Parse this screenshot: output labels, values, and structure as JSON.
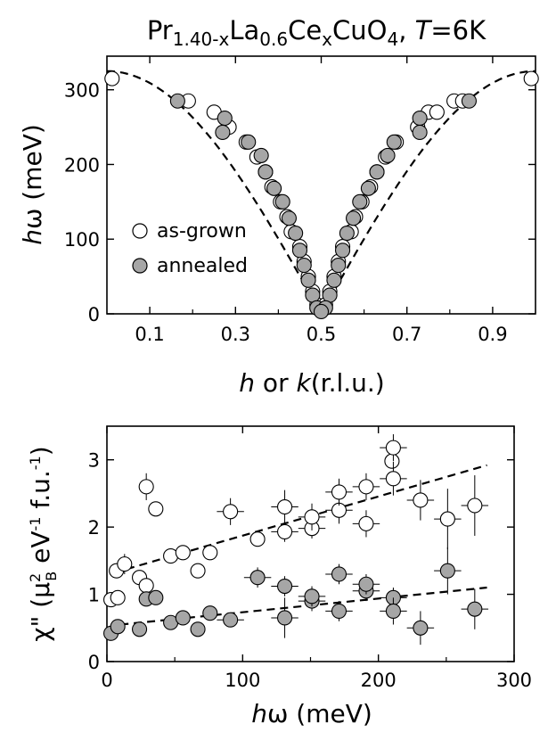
{
  "title": {
    "pre": "Pr",
    "sub1": "1.40-x",
    "mid1": "La",
    "sub2": "0.6",
    "mid2": "Ce",
    "sub3": "x",
    "mid3": "CuO",
    "sub4": "4",
    "sep": ", ",
    "temp_var": "T",
    "temp_val": "=6K"
  },
  "chart_data": [
    {
      "type": "scatter",
      "title": "",
      "xlabel": {
        "h": "h",
        "or": " or ",
        "k": "k",
        "rest": "(r.l.u.)"
      },
      "ylabel": {
        "h": "h",
        "rest": "ω (meV)"
      },
      "xlim": [
        0,
        1.0
      ],
      "ylim": [
        0,
        345
      ],
      "xticks": [
        0.1,
        0.3,
        0.5,
        0.7,
        0.9
      ],
      "xtick_labels": [
        "0.1",
        "0.3",
        "0.5",
        "0.7",
        "0.9"
      ],
      "yticks": [
        0,
        100,
        200,
        300
      ],
      "ytick_labels": [
        "0",
        "100",
        "200",
        "300"
      ],
      "legend": {
        "position": "left",
        "entries": [
          {
            "label": "as-grown",
            "fill": "#ffffff"
          },
          {
            "label": "annealed",
            "fill": "#a6a6a6"
          }
        ]
      },
      "fit_line": {
        "style": "dashed",
        "J_meV": 162,
        "max_meV": 325
      },
      "series": [
        {
          "name": "as-grown",
          "fill": "#ffffff",
          "points": [
            [
              0.012,
              315
            ],
            [
              0.99,
              315
            ],
            [
              0.19,
              285
            ],
            [
              0.81,
              285
            ],
            [
              0.83,
              285
            ],
            [
              0.25,
              270
            ],
            [
              0.75,
              270
            ],
            [
              0.77,
              270
            ],
            [
              0.285,
              250
            ],
            [
              0.725,
              250
            ],
            [
              0.325,
              230
            ],
            [
              0.675,
              230
            ],
            [
              0.35,
              210
            ],
            [
              0.65,
              210
            ],
            [
              0.37,
              190
            ],
            [
              0.63,
              190
            ],
            [
              0.385,
              170
            ],
            [
              0.615,
              170
            ],
            [
              0.405,
              150
            ],
            [
              0.595,
              150
            ],
            [
              0.42,
              130
            ],
            [
              0.58,
              130
            ],
            [
              0.43,
              110
            ],
            [
              0.57,
              110
            ],
            [
              0.45,
              90
            ],
            [
              0.55,
              90
            ],
            [
              0.46,
              70
            ],
            [
              0.54,
              70
            ],
            [
              0.47,
              50
            ],
            [
              0.53,
              50
            ],
            [
              0.48,
              30
            ],
            [
              0.52,
              30
            ],
            [
              0.49,
              12
            ],
            [
              0.51,
              12
            ],
            [
              0.5,
              5
            ]
          ]
        },
        {
          "name": "annealed",
          "fill": "#a6a6a6",
          "points": [
            [
              0.165,
              285
            ],
            [
              0.845,
              285
            ],
            [
              0.275,
              262
            ],
            [
              0.73,
              262
            ],
            [
              0.27,
              243
            ],
            [
              0.73,
              243
            ],
            [
              0.33,
              230
            ],
            [
              0.67,
              230
            ],
            [
              0.36,
              212
            ],
            [
              0.655,
              212
            ],
            [
              0.37,
              190
            ],
            [
              0.63,
              190
            ],
            [
              0.39,
              168
            ],
            [
              0.61,
              168
            ],
            [
              0.41,
              150
            ],
            [
              0.59,
              150
            ],
            [
              0.425,
              128
            ],
            [
              0.575,
              128
            ],
            [
              0.44,
              108
            ],
            [
              0.56,
              108
            ],
            [
              0.45,
              85
            ],
            [
              0.55,
              85
            ],
            [
              0.46,
              65
            ],
            [
              0.54,
              65
            ],
            [
              0.47,
              45
            ],
            [
              0.53,
              45
            ],
            [
              0.48,
              25
            ],
            [
              0.52,
              25
            ],
            [
              0.49,
              8
            ],
            [
              0.51,
              8
            ],
            [
              0.5,
              3
            ]
          ]
        }
      ]
    },
    {
      "type": "scatter",
      "title": "",
      "xlabel": {
        "h": "h",
        "rest": "ω (meV)"
      },
      "ylabel": {
        "chi": "χ\" (μ",
        "sup": "2",
        "sub": "B",
        "rest": " eV",
        "exp1": "-1",
        "rest2": " f.u.",
        "exp2": "-1",
        "close": ")"
      },
      "xlim": [
        0,
        300
      ],
      "ylim": [
        0,
        3.5
      ],
      "xticks": [
        0,
        100,
        200,
        300
      ],
      "xtick_labels": [
        "0",
        "100",
        "200",
        "300"
      ],
      "yticks": [
        0,
        1,
        2,
        3
      ],
      "ytick_labels": [
        "0",
        "1",
        "2",
        "3"
      ],
      "fit_lines": [
        {
          "style": "dashed",
          "x": [
            5,
            280
          ],
          "y": [
            1.32,
            2.92
          ]
        },
        {
          "style": "dashed",
          "x": [
            10,
            280
          ],
          "y": [
            0.55,
            1.1
          ]
        }
      ],
      "series": [
        {
          "name": "as-grown",
          "fill": "#ffffff",
          "points": [
            {
              "x": 3,
              "y": 0.92,
              "xerr": 0,
              "yerr": 0
            },
            {
              "x": 8,
              "y": 0.95,
              "xerr": 0,
              "yerr": 0
            },
            {
              "x": 7,
              "y": 1.35,
              "xerr": 0,
              "yerr": 0.1
            },
            {
              "x": 13,
              "y": 1.45,
              "xerr": 0,
              "yerr": 0.15
            },
            {
              "x": 24,
              "y": 1.25,
              "xerr": 0,
              "yerr": 0
            },
            {
              "x": 29,
              "y": 1.13,
              "xerr": 0,
              "yerr": 0
            },
            {
              "x": 29,
              "y": 2.6,
              "xerr": 0,
              "yerr": 0.2
            },
            {
              "x": 36,
              "y": 2.27,
              "xerr": 0,
              "yerr": 0
            },
            {
              "x": 47,
              "y": 1.57,
              "xerr": 0,
              "yerr": 0
            },
            {
              "x": 56,
              "y": 1.62,
              "xerr": 0,
              "yerr": 0
            },
            {
              "x": 67,
              "y": 1.35,
              "xerr": 0,
              "yerr": 0
            },
            {
              "x": 76,
              "y": 1.62,
              "xerr": 0,
              "yerr": 0
            },
            {
              "x": 91,
              "y": 2.23,
              "xerr": 10,
              "yerr": 0.2
            },
            {
              "x": 111,
              "y": 1.82,
              "xerr": 0,
              "yerr": 0
            },
            {
              "x": 131,
              "y": 1.93,
              "xerr": 10,
              "yerr": 0.15
            },
            {
              "x": 131,
              "y": 2.3,
              "xerr": 10,
              "yerr": 0.25
            },
            {
              "x": 151,
              "y": 1.98,
              "xerr": 10,
              "yerr": 0.15
            },
            {
              "x": 151,
              "y": 2.15,
              "xerr": 10,
              "yerr": 0.2
            },
            {
              "x": 171,
              "y": 2.25,
              "xerr": 10,
              "yerr": 0.2
            },
            {
              "x": 171,
              "y": 2.52,
              "xerr": 10,
              "yerr": 0.2
            },
            {
              "x": 191,
              "y": 2.05,
              "xerr": 10,
              "yerr": 0.2
            },
            {
              "x": 191,
              "y": 2.6,
              "xerr": 10,
              "yerr": 0.2
            },
            {
              "x": 210,
              "y": 2.98,
              "xerr": 0,
              "yerr": 0
            },
            {
              "x": 211,
              "y": 3.18,
              "xerr": 10,
              "yerr": 0.2
            },
            {
              "x": 211,
              "y": 2.72,
              "xerr": 10,
              "yerr": 0.25
            },
            {
              "x": 231,
              "y": 2.4,
              "xerr": 10,
              "yerr": 0.3
            },
            {
              "x": 251,
              "y": 2.12,
              "xerr": 10,
              "yerr": 0.45
            },
            {
              "x": 271,
              "y": 2.32,
              "xerr": 10,
              "yerr": 0.45
            }
          ]
        },
        {
          "name": "annealed",
          "fill": "#a6a6a6",
          "points": [
            {
              "x": 3,
              "y": 0.42,
              "xerr": 0,
              "yerr": 0
            },
            {
              "x": 8,
              "y": 0.52,
              "xerr": 0,
              "yerr": 0
            },
            {
              "x": 24,
              "y": 0.48,
              "xerr": 0,
              "yerr": 0
            },
            {
              "x": 29,
              "y": 0.93,
              "xerr": 0,
              "yerr": 0.1
            },
            {
              "x": 36,
              "y": 0.95,
              "xerr": 0,
              "yerr": 0
            },
            {
              "x": 47,
              "y": 0.58,
              "xerr": 0,
              "yerr": 0
            },
            {
              "x": 56,
              "y": 0.65,
              "xerr": 0,
              "yerr": 0
            },
            {
              "x": 67,
              "y": 0.48,
              "xerr": 0,
              "yerr": 0
            },
            {
              "x": 76,
              "y": 0.72,
              "xerr": 0,
              "yerr": 0
            },
            {
              "x": 91,
              "y": 0.62,
              "xerr": 10,
              "yerr": 0.1
            },
            {
              "x": 111,
              "y": 1.25,
              "xerr": 10,
              "yerr": 0.15
            },
            {
              "x": 131,
              "y": 0.65,
              "xerr": 10,
              "yerr": 0.3
            },
            {
              "x": 131,
              "y": 1.12,
              "xerr": 10,
              "yerr": 0.15
            },
            {
              "x": 151,
              "y": 0.9,
              "xerr": 10,
              "yerr": 0.15
            },
            {
              "x": 151,
              "y": 0.97,
              "xerr": 10,
              "yerr": 0.15
            },
            {
              "x": 171,
              "y": 0.75,
              "xerr": 10,
              "yerr": 0.15
            },
            {
              "x": 171,
              "y": 1.3,
              "xerr": 10,
              "yerr": 0.15
            },
            {
              "x": 191,
              "y": 1.05,
              "xerr": 10,
              "yerr": 0.15
            },
            {
              "x": 191,
              "y": 1.15,
              "xerr": 10,
              "yerr": 0.15
            },
            {
              "x": 211,
              "y": 0.95,
              "xerr": 10,
              "yerr": 0.15
            },
            {
              "x": 211,
              "y": 0.75,
              "xerr": 10,
              "yerr": 0.2
            },
            {
              "x": 231,
              "y": 0.5,
              "xerr": 10,
              "yerr": 0.25
            },
            {
              "x": 251,
              "y": 1.35,
              "xerr": 10,
              "yerr": 0.35
            },
            {
              "x": 271,
              "y": 0.78,
              "xerr": 10,
              "yerr": 0.3
            }
          ]
        }
      ]
    }
  ]
}
